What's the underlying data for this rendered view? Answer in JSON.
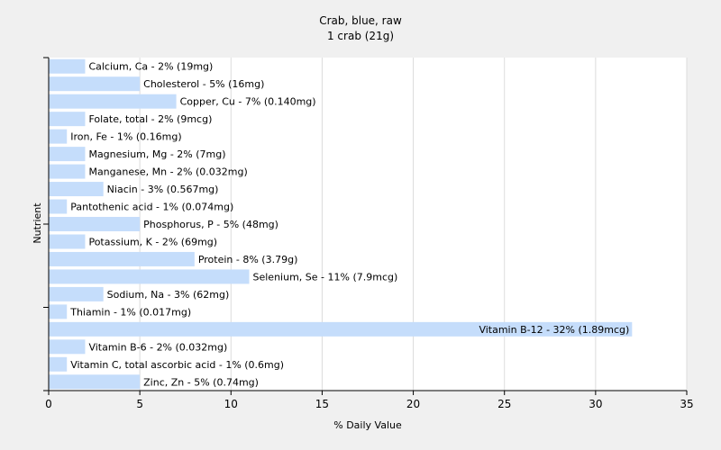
{
  "chart_data": {
    "type": "bar",
    "orientation": "horizontal",
    "title": "Crab, blue, raw",
    "subtitle": "1 crab (21g)",
    "xlabel": "% Daily Value",
    "ylabel": "Nutrient",
    "xlim": [
      0,
      35
    ],
    "xticks": [
      0,
      5,
      10,
      15,
      20,
      25,
      30,
      35
    ],
    "grid": true,
    "legend": "none",
    "colors": {
      "bar": "#c5ddfb",
      "grid": "#dcdcdc",
      "background": "#f0f0f0",
      "plot_background": "#ffffff",
      "axis": "#000000"
    },
    "categories": [
      "Calcium, Ca",
      "Cholesterol",
      "Copper, Cu",
      "Folate, total",
      "Iron, Fe",
      "Magnesium, Mg",
      "Manganese, Mn",
      "Niacin",
      "Pantothenic acid",
      "Phosphorus, P",
      "Potassium, K",
      "Protein",
      "Selenium, Se",
      "Sodium, Na",
      "Thiamin",
      "Vitamin B-12",
      "Vitamin B-6",
      "Vitamin C, total ascorbic acid",
      "Zinc, Zn"
    ],
    "values": [
      2,
      5,
      7,
      2,
      1,
      2,
      2,
      3,
      1,
      5,
      2,
      8,
      11,
      3,
      1,
      32,
      2,
      1,
      5
    ],
    "labels": [
      "Calcium, Ca - 2% (19mg)",
      "Cholesterol - 5% (16mg)",
      "Copper, Cu - 7% (0.140mg)",
      "Folate, total - 2% (9mcg)",
      "Iron, Fe - 1% (0.16mg)",
      "Magnesium, Mg - 2% (7mg)",
      "Manganese, Mn - 2% (0.032mg)",
      "Niacin - 3% (0.567mg)",
      "Pantothenic acid - 1% (0.074mg)",
      "Phosphorus, P - 5% (48mg)",
      "Potassium, K - 2% (69mg)",
      "Protein - 8% (3.79g)",
      "Selenium, Se - 11% (7.9mcg)",
      "Sodium, Na - 3% (62mg)",
      "Thiamin - 1% (0.017mg)",
      "Vitamin B-12 - 32% (1.89mcg)",
      "Vitamin B-6 - 2% (0.032mg)",
      "Vitamin C, total ascorbic acid - 1% (0.6mg)",
      "Zinc, Zn - 5% (0.74mg)"
    ]
  }
}
